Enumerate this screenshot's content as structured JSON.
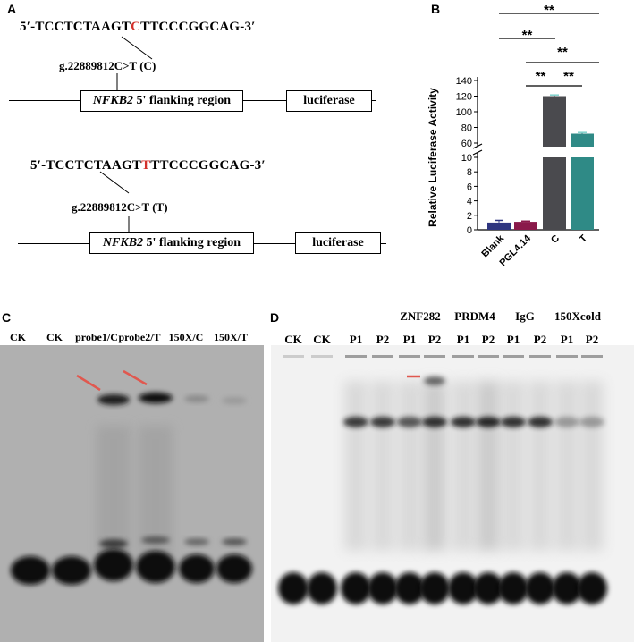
{
  "panel_a": {
    "letter": "A",
    "constructs": [
      {
        "seq_prefix": "5′-TCCTCTAAGT",
        "seq_base": "C",
        "seq_suffix": "TTCCCGGCAG-3′",
        "snp_label": "g.22889812C>T (C)",
        "gene": "NFKB2",
        "region": " 5' flanking region",
        "reporter": "luciferase"
      },
      {
        "seq_prefix": "5′-TCCTCTAAGT",
        "seq_base": "T",
        "seq_suffix": "TTCCCGGCAG-3′",
        "snp_label": "g.22889812C>T (T)",
        "gene": "NFKB2",
        "region": " 5' flanking region",
        "reporter": "luciferase"
      }
    ],
    "mutation_color": "#d3302b"
  },
  "panel_b": {
    "letter": "B",
    "significance": [
      "**",
      "**",
      "**",
      "**",
      "**"
    ]
  },
  "chart_data": {
    "type": "bar",
    "categories": [
      "Blank",
      "PGL4.14",
      "C",
      "T"
    ],
    "values": [
      1.0,
      1.1,
      120,
      72
    ],
    "errors": [
      0.3,
      0.1,
      1.5,
      1.5
    ],
    "colors": [
      "#2e3580",
      "#8a1a4a",
      "#4a4a4e",
      "#2f8a86"
    ],
    "ylabel": "Relative Luciferase Activity",
    "axis_break": [
      10,
      60
    ],
    "yticks_lower": [
      0,
      2,
      4,
      6,
      8,
      10
    ],
    "yticks_upper": [
      60,
      80,
      100,
      120,
      140
    ],
    "comparisons": [
      {
        "from": "Blank",
        "to": "T",
        "label": "**"
      },
      {
        "from": "Blank",
        "to": "C",
        "label": "**"
      },
      {
        "from": "PGL4.14",
        "to": "T",
        "label": "**"
      },
      {
        "from": "PGL4.14",
        "to": "C",
        "label": "**"
      },
      {
        "from": "C",
        "to": "T",
        "label": "**"
      }
    ]
  },
  "panel_c": {
    "letter": "C",
    "lanes": [
      "CK",
      "CK",
      "probe1/C",
      "probe2/T",
      "150X/C",
      "150X/T"
    ],
    "arrow_color": "#e0584f"
  },
  "panel_d": {
    "letter": "D",
    "lanes": [
      "CK",
      "CK",
      "P1",
      "P2",
      "P1",
      "P2",
      "P1",
      "P2",
      "P1",
      "P2",
      "P1",
      "P2"
    ],
    "groups": [
      "ZNF282",
      "PRDM4",
      "IgG",
      "150Xcold"
    ],
    "underline_color": "#d3302b"
  }
}
